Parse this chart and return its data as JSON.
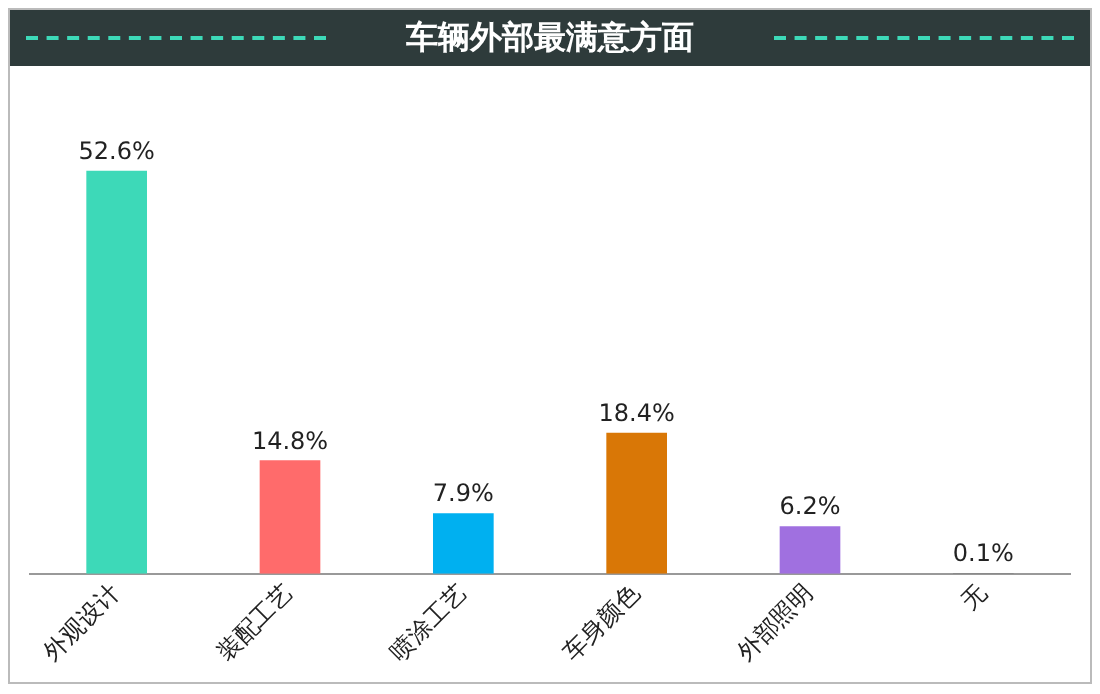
{
  "chart_data": {
    "type": "bar",
    "title": "车辆外部最满意方面",
    "categories": [
      "外观设计",
      "装配工艺",
      "喷涂工艺",
      "车身颜色",
      "外部照明",
      "无"
    ],
    "values": [
      52.6,
      14.8,
      7.9,
      18.4,
      6.2,
      0.1
    ],
    "colors": [
      "#3dd9b8",
      "#ff6b6b",
      "#00b0f0",
      "#d97706",
      "#a070e0",
      "#7f7f7f"
    ],
    "value_labels": [
      "52.6%",
      "14.8%",
      "7.9%",
      "18.4%",
      "6.2%",
      "0.1%"
    ],
    "grid": false,
    "legend": false,
    "tick_labels": "x"
  }
}
